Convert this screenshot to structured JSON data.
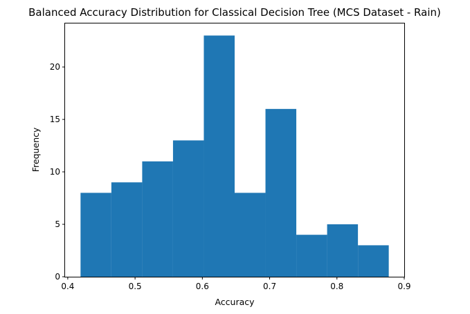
{
  "chart_data": {
    "type": "histogram",
    "title": "Balanced Accuracy Distribution for Classical Decision Tree (MCS Dataset - Rain)",
    "xlabel": "Accuracy",
    "ylabel": "Frequency",
    "bin_edges": [
      0.419,
      0.4648,
      0.5106,
      0.5564,
      0.6022,
      0.648,
      0.6938,
      0.7396,
      0.7854,
      0.8312,
      0.877
    ],
    "values": [
      8,
      9,
      11,
      13,
      23,
      8,
      16,
      4,
      5,
      3
    ],
    "xlim": [
      0.396,
      0.9
    ],
    "ylim": [
      0,
      24.15
    ],
    "xticks": [
      0.4,
      0.5,
      0.6,
      0.7,
      0.8,
      0.9
    ],
    "xtick_labels": [
      "0.4",
      "0.5",
      "0.6",
      "0.7",
      "0.8",
      "0.9"
    ],
    "yticks": [
      0,
      5,
      10,
      15,
      20
    ],
    "ytick_labels": [
      "0",
      "5",
      "10",
      "15",
      "20"
    ],
    "bar_color": "#1f77b4",
    "grid": false,
    "legend": "none"
  }
}
